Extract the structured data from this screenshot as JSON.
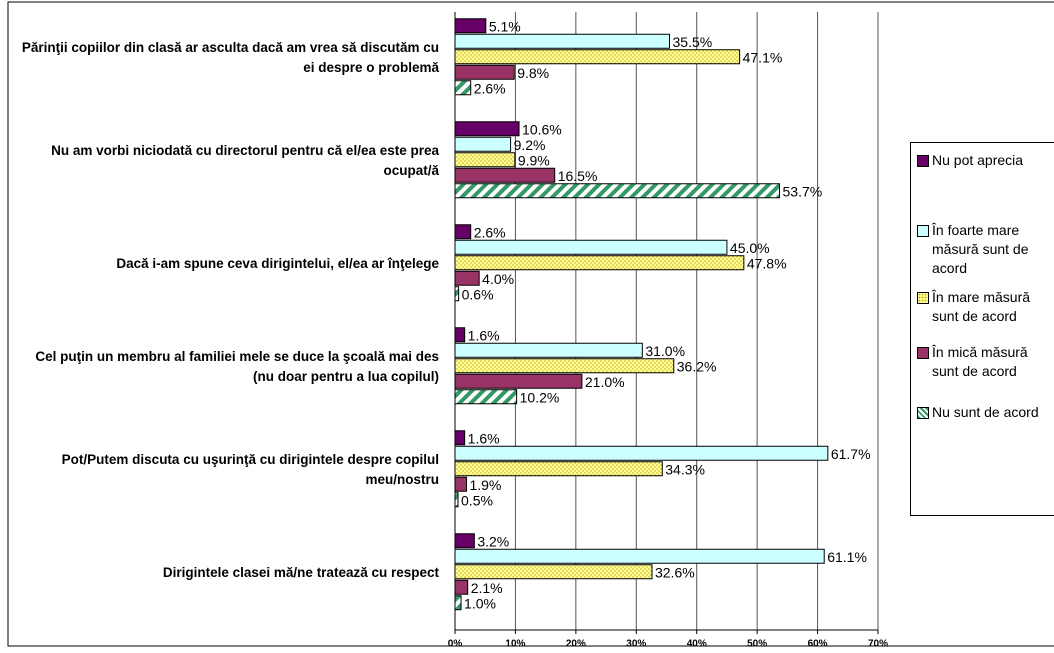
{
  "chart_data": {
    "type": "bar",
    "orientation": "horizontal",
    "categories": [
      "Părinţii copiilor din clasă ar asculta dacă am vrea să discutăm cu ei despre o problemă",
      "Nu am vorbi niciodată cu directorul pentru că el/ea este prea ocupat/ă",
      "Dacă i-am spune ceva dirigintelui, el/ea ar înţelege",
      "Cel puţin un membru al familiei mele se duce la şcoală mai des (nu doar pentru a lua copilul)",
      "Pot/Putem discuta cu uşurinţă cu dirigintele despre copilul meu/nostru",
      "Dirigintele clasei mă/ne tratează cu respect"
    ],
    "series": [
      {
        "name": "Nu pot aprecia",
        "color": "#660066",
        "pattern": "solid",
        "values": [
          5.1,
          10.6,
          2.6,
          1.6,
          1.6,
          3.2
        ],
        "value_labels": [
          "5.1%",
          "10.6%",
          "2.6%",
          "1.6%",
          "1.6%",
          "3.2%"
        ]
      },
      {
        "name": "În foarte mare măsură sunt de acord",
        "color": "#ccffff",
        "pattern": "solid",
        "values": [
          35.5,
          9.2,
          45.0,
          31.0,
          61.7,
          61.1
        ],
        "value_labels": [
          "35.5%",
          "9.2%",
          "45.0%",
          "31.0%",
          "61.7%",
          "61.1%"
        ]
      },
      {
        "name": "În mare măsură sunt de acord",
        "color": "#ffff99",
        "pattern": "dots",
        "values": [
          47.1,
          9.9,
          47.8,
          36.2,
          34.3,
          32.6
        ],
        "value_labels": [
          "47.1%",
          "9.9%",
          "47.8%",
          "36.2%",
          "34.3%",
          "32.6%"
        ]
      },
      {
        "name": "În mică măsură sunt de acord",
        "color": "#993366",
        "pattern": "solid",
        "values": [
          9.8,
          16.5,
          4.0,
          21.0,
          1.9,
          2.1
        ],
        "value_labels": [
          "9.8%",
          "16.5%",
          "4.0%",
          "21.0%",
          "1.9%",
          "2.1%"
        ]
      },
      {
        "name": "Nu sunt de acord",
        "color": "#339966",
        "pattern": "stripes",
        "values": [
          2.6,
          53.7,
          0.6,
          10.2,
          0.5,
          1.0
        ],
        "value_labels": [
          "2.6%",
          "53.7%",
          "0.6%",
          "10.2%",
          "0.5%",
          "1.0%"
        ]
      }
    ],
    "xlim": [
      0,
      70
    ],
    "xticks": [
      {
        "value": 0,
        "label": "0%"
      },
      {
        "value": 10,
        "label": "10%"
      },
      {
        "value": 20,
        "label": "20%"
      },
      {
        "value": 30,
        "label": "30%"
      },
      {
        "value": 40,
        "label": "40%"
      },
      {
        "value": 50,
        "label": "50%"
      },
      {
        "value": 60,
        "label": "60%"
      },
      {
        "value": 70,
        "label": "70%"
      }
    ],
    "grid": true,
    "legend": "right"
  }
}
